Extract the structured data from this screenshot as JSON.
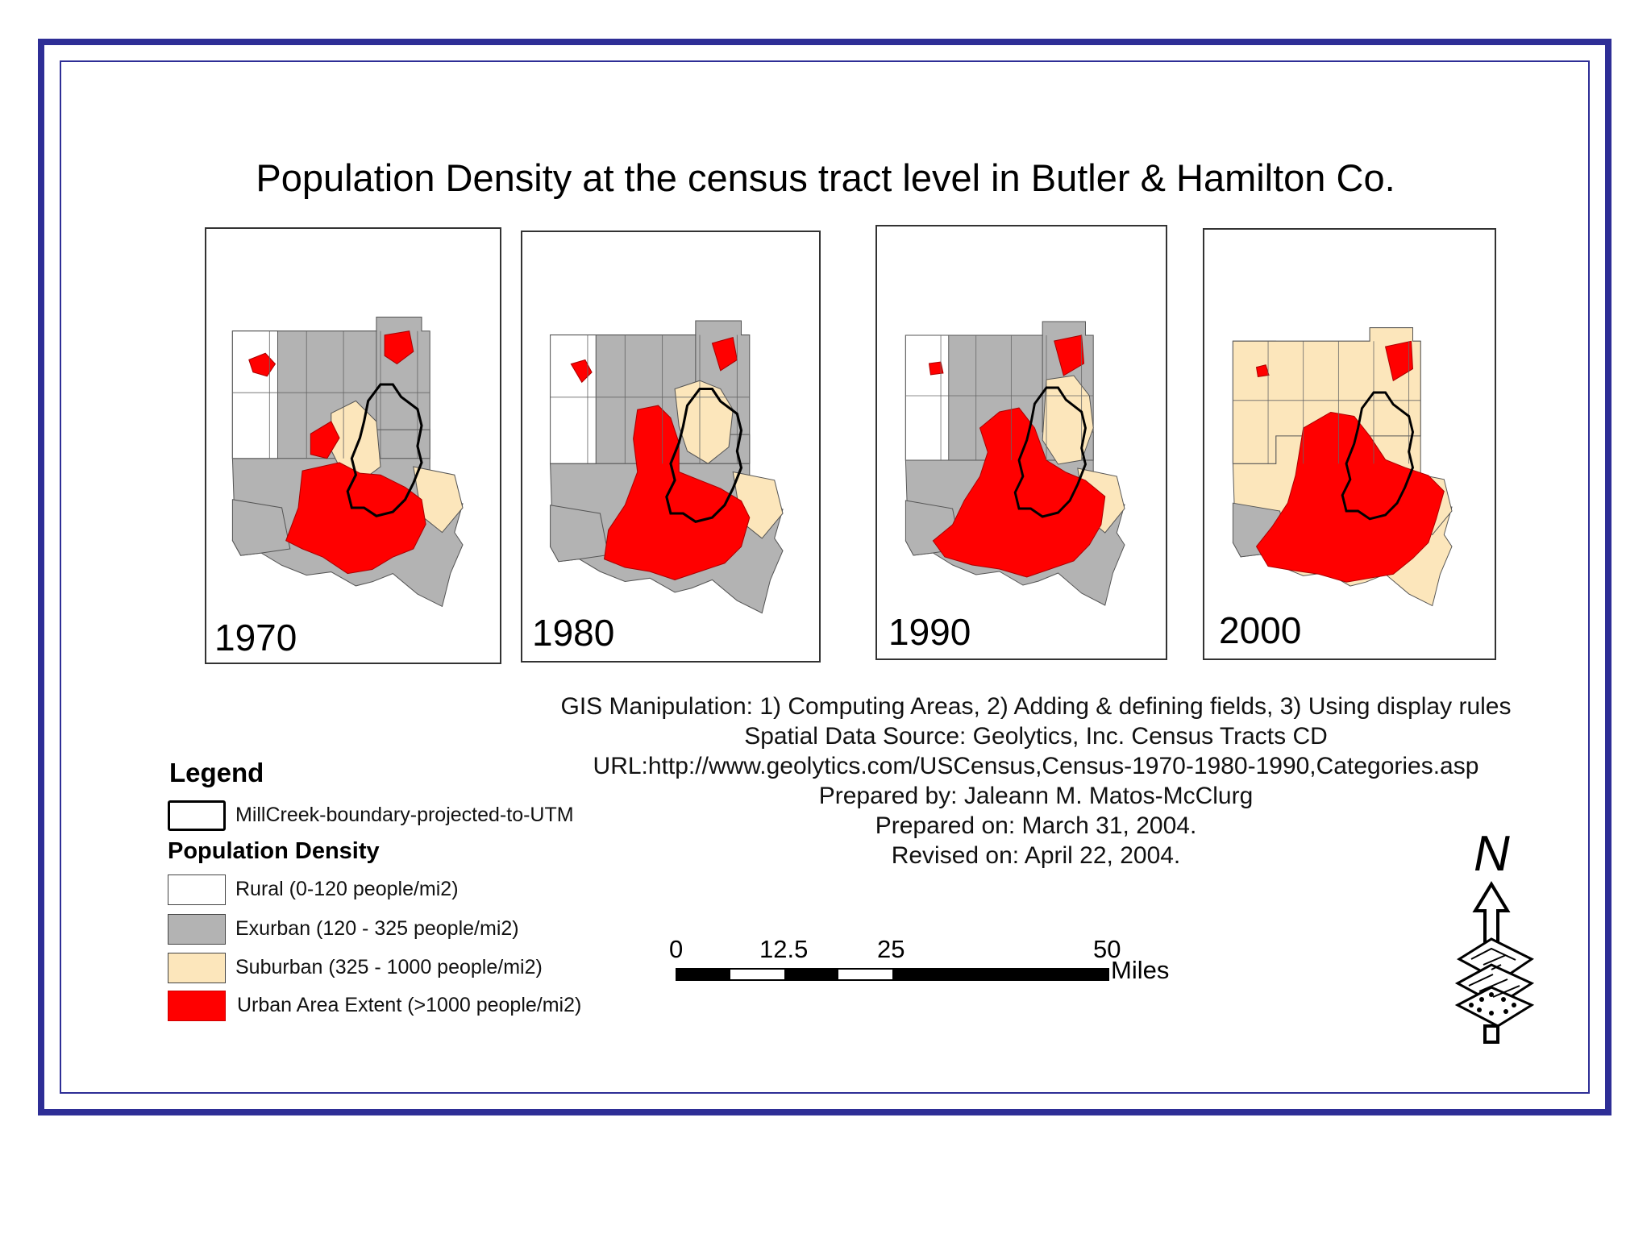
{
  "map": {
    "title": "Population Density at the census tract level in Butler & Hamilton Co.",
    "panels": [
      {
        "year": "1970"
      },
      {
        "year": "1980"
      },
      {
        "year": "1990"
      },
      {
        "year": "2000"
      }
    ],
    "info_lines": [
      "GIS Manipulation: 1) Computing Areas, 2) Adding & defining fields,  3) Using display rules",
      "Spatial Data Source: Geolytics, Inc. Census Tracts CD",
      "URL:http://www.geolytics.com/USCensus,Census-1970-1980-1990,Categories.asp",
      "Prepared by: Jaleann M. Matos-McClurg",
      "Prepared on: March 31, 2004.",
      "Revised on: April 22, 2004."
    ],
    "legend": {
      "title": "Legend",
      "boundary_label": "MillCreek-boundary-projected-to-UTM",
      "subtitle": "Population Density",
      "classes": [
        {
          "label": "Rural (0-120 people/mi2)",
          "color": "#ffffff"
        },
        {
          "label": "Exurban (120 - 325 people/mi2)",
          "color": "#b3b3b3"
        },
        {
          "label": "Suburban (325 - 1000 people/mi2)",
          "color": "#fce6bb"
        },
        {
          "label": "Urban Area Extent (>1000 people/mi2)",
          "color": "#ff0000"
        }
      ]
    },
    "scale": {
      "ticks": [
        "0",
        "12.5",
        "25",
        "50"
      ],
      "unit": "Miles"
    },
    "north_label": "N",
    "colors": {
      "frame": "#2e2e96",
      "rural": "#ffffff",
      "exurban": "#b3b3b3",
      "suburban": "#fce6bb",
      "urban": "#ff0000"
    }
  }
}
